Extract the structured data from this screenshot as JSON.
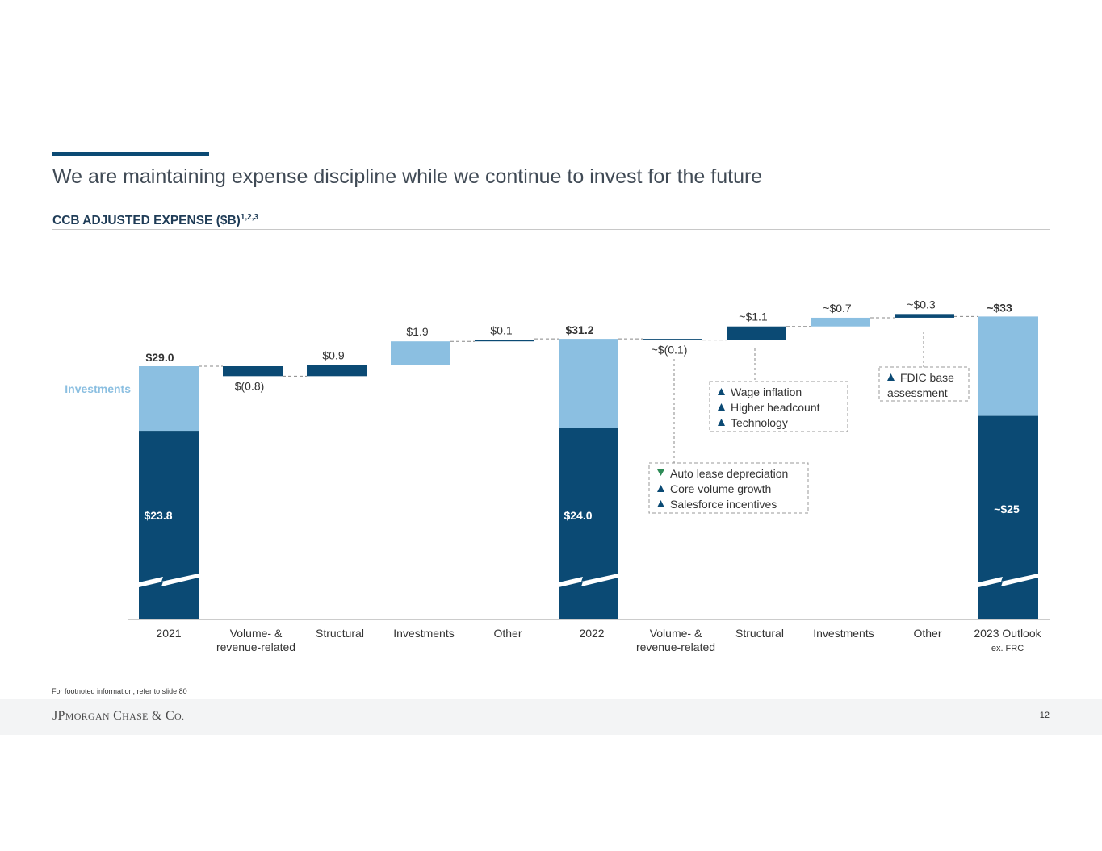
{
  "slide": {
    "title": "We are maintaining expense discipline while we continue to invest for the future",
    "subtitle": "CCB ADJUSTED EXPENSE ($B)",
    "subtitle_sup": "1,2,3",
    "footnote": "For footnoted information, refer to slide 80",
    "logo": "JPMORGAN CHASE & CO.",
    "page_number": "12"
  },
  "colors": {
    "dark": "#0b4a74",
    "light": "#8bbfe1",
    "label_light": "#8bbfe1",
    "green": "#2e8b57"
  },
  "chart_data": {
    "type": "bar",
    "subtype": "waterfall",
    "title": "CCB ADJUSTED EXPENSE ($B)",
    "series_label": "Investments",
    "y_axis_broken": true,
    "categories": [
      "2021",
      "Volume- & revenue-related",
      "Structural",
      "Investments",
      "Other",
      "2022",
      "Volume- & revenue-related",
      "Structural",
      "Investments",
      "Other",
      "2023 Outlook"
    ],
    "category_lines": [
      [
        "2021"
      ],
      [
        "Volume- &",
        "revenue-related"
      ],
      [
        "Structural"
      ],
      [
        "Investments"
      ],
      [
        "Other"
      ],
      [
        "2022"
      ],
      [
        "Volume- &",
        "revenue-related"
      ],
      [
        "Structural"
      ],
      [
        "Investments"
      ],
      [
        "Other"
      ],
      [
        "2023 Outlook"
      ]
    ],
    "category_sub": "ex. FRC",
    "bars": [
      {
        "kind": "total",
        "base_value": 23.8,
        "top_value": 29.0,
        "total_label": "$29.0",
        "base_label": "$23.8"
      },
      {
        "kind": "delta",
        "value": -0.8,
        "label": "$(0.8)",
        "color": "dark"
      },
      {
        "kind": "delta",
        "value": 0.9,
        "label": "$0.9",
        "color": "dark"
      },
      {
        "kind": "delta",
        "value": 1.9,
        "label": "$1.9",
        "color": "light"
      },
      {
        "kind": "delta",
        "value": 0.1,
        "label": "$0.1",
        "color": "dark"
      },
      {
        "kind": "total",
        "base_value": 24.0,
        "top_value": 31.2,
        "total_label": "$31.2",
        "base_label": "$24.0"
      },
      {
        "kind": "delta",
        "value": -0.1,
        "label": "~$(0.1)",
        "color": "dark"
      },
      {
        "kind": "delta",
        "value": 1.1,
        "label": "~$1.1",
        "color": "dark"
      },
      {
        "kind": "delta",
        "value": 0.7,
        "label": "~$0.7",
        "color": "light"
      },
      {
        "kind": "delta",
        "value": 0.3,
        "label": "~$0.3",
        "color": "dark"
      },
      {
        "kind": "total",
        "base_value": 25,
        "top_value": 33,
        "total_label": "~$33",
        "base_label": "~$25"
      }
    ],
    "callouts": [
      {
        "for": 6,
        "items": [
          {
            "arrow": "down",
            "text": "Auto lease depreciation"
          },
          {
            "arrow": "up",
            "text": "Core volume growth"
          },
          {
            "arrow": "up",
            "text": "Salesforce incentives"
          }
        ]
      },
      {
        "for": 7,
        "items": [
          {
            "arrow": "up",
            "text": "Wage inflation"
          },
          {
            "arrow": "up",
            "text": "Higher headcount"
          },
          {
            "arrow": "up",
            "text": "Technology"
          }
        ]
      },
      {
        "for": 9,
        "items": [
          {
            "arrow": "up",
            "text": "FDIC base"
          },
          {
            "arrow": "none",
            "text": "assessment"
          }
        ]
      }
    ]
  }
}
